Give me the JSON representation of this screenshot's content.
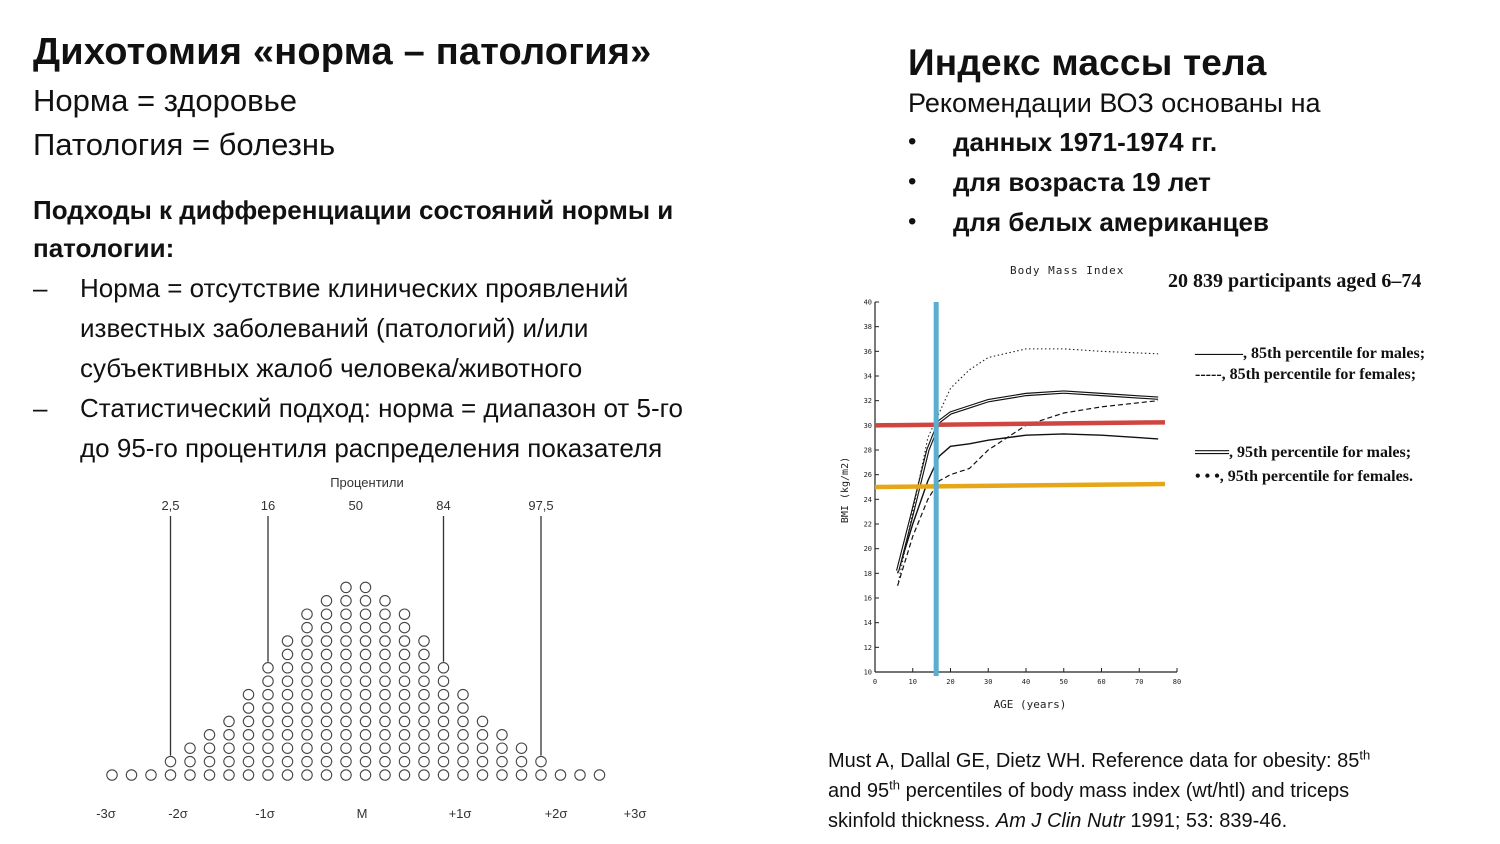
{
  "left": {
    "title": "Дихотомия «норма – патология»",
    "line1": "Норма = здоровье",
    "line2": "Патология = болезнь",
    "approaches_heading_1": "Подходы к дифференциации состояний нормы и",
    "approaches_heading_2": "патологии:",
    "items": [
      {
        "marker": "–",
        "lines": [
          "Норма = отсутствие клинических проявлений",
          "известных заболеваний (патологий) и/или",
          "субъективных жалоб человека/животного"
        ]
      },
      {
        "marker": "–",
        "lines": [
          "Статистический подход: норма = диапазон от 5-го",
          "до 95-го процентиля распределения показателя"
        ]
      }
    ]
  },
  "right": {
    "title": "Индекс массы тела",
    "intro": "Рекомендации ВОЗ основаны на",
    "bullets": [
      "данных 1971-1974 гг.",
      "для возраста 19 лет",
      "для белых американцев"
    ],
    "bullet_symbol": "•"
  },
  "reference": {
    "line1_pre": "Must A, Dallal GE, Dietz WH. Reference data for obesity: 85",
    "sup1": "th",
    "line2_pre": "and 95",
    "sup2": "th",
    "line2_post": " percentiles of body mass index (wt/htl) and triceps",
    "line3_pre": "skinfold thickness. ",
    "line3_italic": "Am J Clin Nutr",
    "line3_post": " 1991; 53: 839-46."
  },
  "distribution": {
    "title": "Процентили",
    "percentiles": [
      "2,5",
      "16",
      "50",
      "84",
      "97,5"
    ],
    "sigma_labels": [
      "-3σ",
      "-2σ",
      "-1σ",
      "M",
      "+1σ",
      "+2σ",
      "+3σ"
    ],
    "column_counts": [
      1,
      1,
      1,
      2,
      3,
      4,
      5,
      7,
      9,
      11,
      13,
      14,
      15,
      15,
      14,
      13,
      11,
      9,
      7,
      5,
      4,
      3,
      2,
      1,
      1,
      1
    ]
  },
  "chart_data": {
    "type": "line",
    "title": "Body Mass Index",
    "annotation": "20 839 participants aged 6–74",
    "xlabel": "AGE  (years)",
    "ylabel": "BMI  (kg/m2)",
    "xlim": [
      0,
      80
    ],
    "ylim": [
      10,
      40
    ],
    "x_ticks": [
      "0",
      "10",
      "20",
      "30",
      "40",
      "50",
      "60",
      "70",
      "80"
    ],
    "y_ticks": [
      "10",
      "12",
      "14",
      "16",
      "18",
      "20",
      "22",
      "24",
      "26",
      "28",
      "30",
      "32",
      "34",
      "36",
      "38",
      "40"
    ],
    "series": [
      {
        "name": "85th percentile for males",
        "legend": "———, 85th percentile for males;",
        "style": "solid",
        "x": [
          6,
          10,
          14,
          17,
          20,
          25,
          30,
          40,
          50,
          60,
          75
        ],
        "y": [
          18,
          22,
          25.5,
          27.5,
          28.3,
          28.5,
          28.8,
          29.2,
          29.3,
          29.2,
          28.9
        ]
      },
      {
        "name": "85th percentile for females",
        "legend": "-----, 85th percentile for females;",
        "style": "dashed",
        "x": [
          6,
          10,
          14,
          17,
          20,
          25,
          30,
          40,
          50,
          60,
          75
        ],
        "y": [
          17,
          21,
          24,
          25.5,
          26,
          26.5,
          28,
          30,
          31,
          31.5,
          32
        ]
      },
      {
        "name": "95th percentile for males",
        "legend": "═══, 95th percentile for males;",
        "style": "double",
        "x": [
          6,
          10,
          14,
          17,
          20,
          25,
          30,
          40,
          50,
          60,
          75
        ],
        "y": [
          18.2,
          23,
          28,
          30.3,
          31,
          31.5,
          32,
          32.5,
          32.7,
          32.5,
          32.2
        ]
      },
      {
        "name": "95th percentile for females",
        "legend": "• • •, 95th percentile for females.",
        "style": "dotted",
        "x": [
          6,
          10,
          14,
          17,
          20,
          25,
          30,
          40,
          50,
          60,
          75
        ],
        "y": [
          17,
          23,
          29,
          31,
          33,
          34.5,
          35.5,
          36.2,
          36.2,
          36,
          35.8
        ]
      }
    ],
    "reference_lines": [
      {
        "orientation": "horizontal",
        "value": 30,
        "color": "#d0453f"
      },
      {
        "orientation": "horizontal",
        "value": 25,
        "color": "#e5a718"
      },
      {
        "orientation": "vertical",
        "value": 17,
        "color": "#5aaecf"
      }
    ]
  }
}
